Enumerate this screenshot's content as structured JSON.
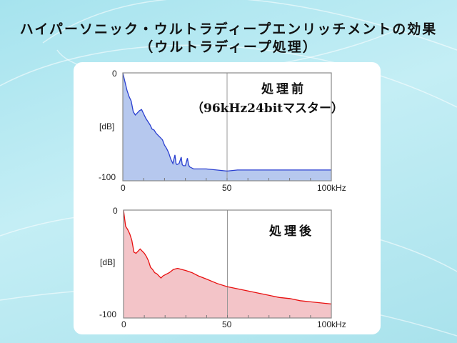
{
  "title": {
    "line1": "ハイパーソニック・ウルトラディープエンリッチメントの効果",
    "line2": "（ウルトラディープ処理）"
  },
  "chart_data": [
    {
      "type": "area",
      "annotation": "処理前",
      "annotation2": "（96kHz24bitマスター）",
      "ylabel": "[dB]",
      "ylim": [
        -100,
        0
      ],
      "xlim": [
        0,
        100
      ],
      "xticks": [
        "0",
        "50",
        "100kHz"
      ],
      "yticks": [
        "0",
        "-100"
      ],
      "color": "#2a3fd0",
      "fill": "#b6c8ee",
      "grid": "vertical line at 50",
      "x": [
        0,
        1,
        2,
        3,
        4,
        5,
        6,
        7,
        8,
        9,
        10,
        11,
        12,
        13,
        14,
        15,
        16,
        17,
        18,
        19,
        20,
        21,
        22,
        23,
        24,
        25,
        25.5,
        26,
        27,
        28,
        28.5,
        29,
        30,
        31,
        31.5,
        32,
        34,
        36,
        40,
        45,
        50,
        55,
        60,
        65,
        70,
        75,
        80,
        85,
        90,
        95,
        100
      ],
      "y": [
        0,
        -8,
        -16,
        -22,
        -26,
        -36,
        -39,
        -37,
        -35,
        -34,
        -38,
        -42,
        -45,
        -48,
        -52,
        -53,
        -56,
        -58,
        -60,
        -62,
        -67,
        -70,
        -74,
        -80,
        -84,
        -76,
        -84,
        -85,
        -84,
        -78,
        -85,
        -86,
        -86,
        -79,
        -85,
        -87,
        -89,
        -89,
        -89,
        -90,
        -91,
        -90,
        -90,
        -90,
        -90,
        -90,
        -90,
        -90,
        -90,
        -90,
        -90
      ]
    },
    {
      "type": "area",
      "annotation": "処理後",
      "ylabel": "[dB]",
      "ylim": [
        -100,
        0
      ],
      "xlim": [
        0,
        100
      ],
      "xticks": [
        "0",
        "50",
        "100kHz"
      ],
      "yticks": [
        "0",
        "-100"
      ],
      "color": "#e81010",
      "fill": "#f3c4c8",
      "grid": "vertical line at 50",
      "x": [
        0,
        1,
        2,
        3,
        4,
        5,
        6,
        7,
        8,
        9,
        10,
        11,
        12,
        13,
        14,
        15,
        16,
        17,
        18,
        19,
        20,
        22,
        24,
        26,
        28,
        30,
        33,
        36,
        40,
        45,
        50,
        55,
        60,
        65,
        70,
        75,
        80,
        85,
        90,
        95,
        100
      ],
      "y": [
        0,
        -15,
        -18,
        -22,
        -28,
        -39,
        -40,
        -38,
        -36,
        -38,
        -40,
        -43,
        -47,
        -53,
        -55,
        -58,
        -59,
        -61,
        -63,
        -61,
        -60,
        -58,
        -55,
        -54,
        -55,
        -56,
        -58,
        -61,
        -64,
        -68,
        -71,
        -73,
        -75,
        -77,
        -79,
        -81,
        -82,
        -84,
        -85,
        -86,
        -87
      ]
    }
  ]
}
